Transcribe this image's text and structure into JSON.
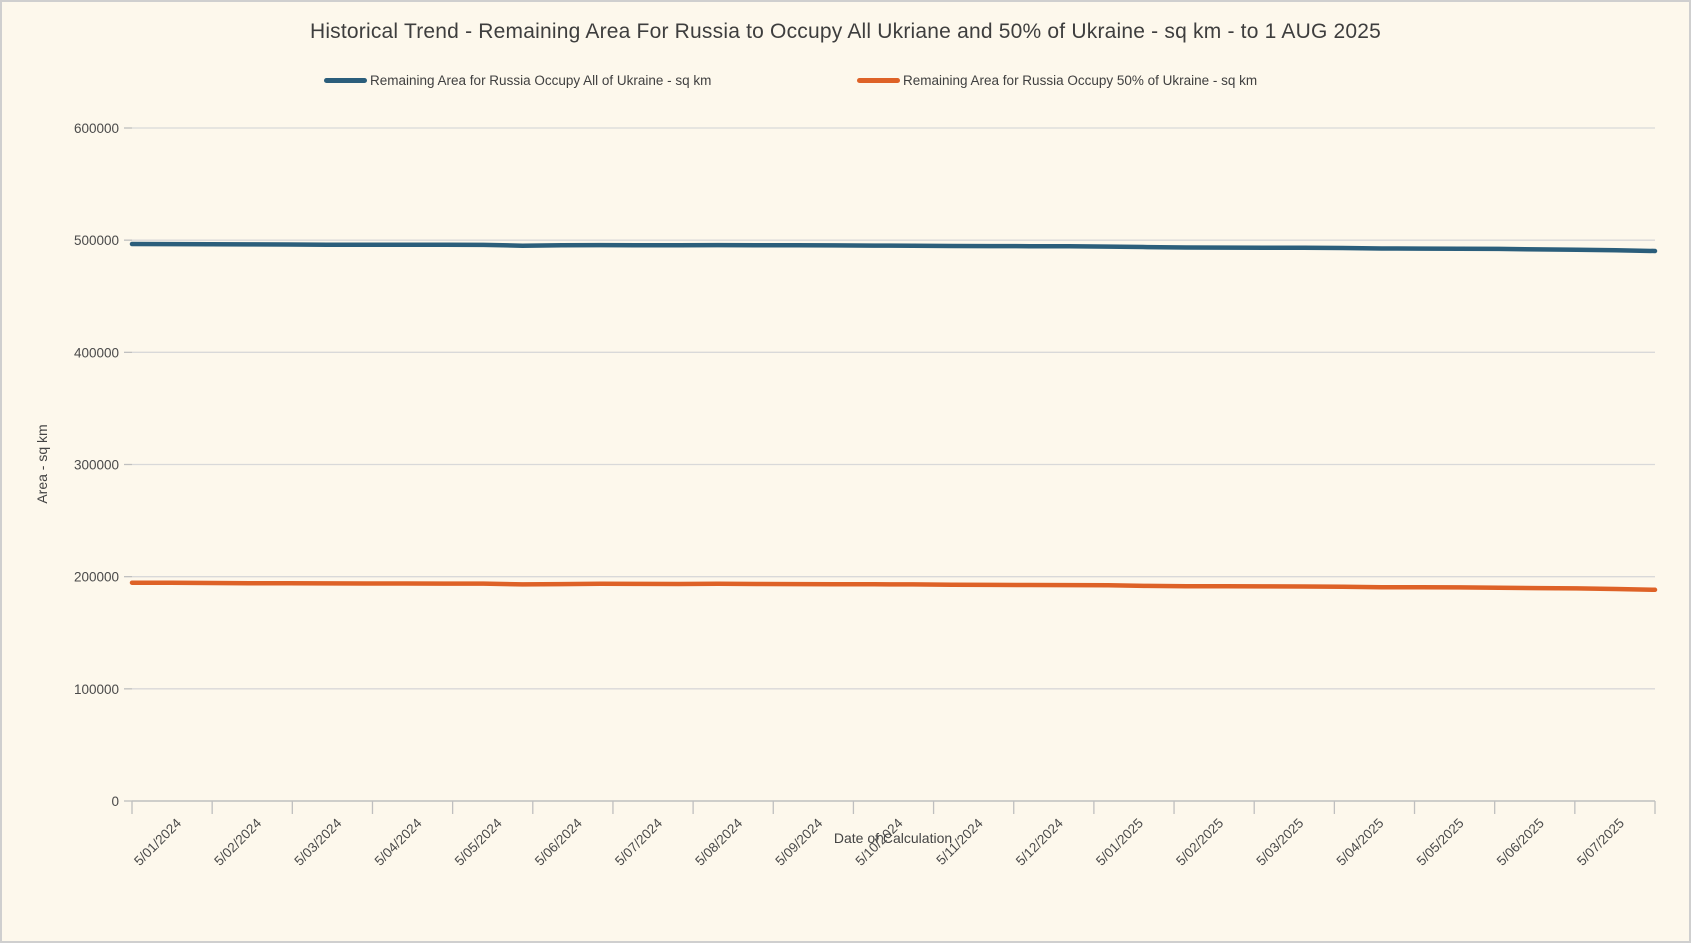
{
  "frame": {
    "background_color": "#FDF8EC",
    "border_color": "#CFCFCF"
  },
  "chart_data": {
    "type": "line",
    "title": "Historical Trend - Remaining Area For Russia to Occupy All Ukriane and 50% of Ukraine - sq km - to 1 AUG 2025",
    "xlabel": "Date of Calculation",
    "ylabel": "Area - sq km",
    "ylim": [
      0,
      600000
    ],
    "y_ticks": [
      0,
      100000,
      200000,
      300000,
      400000,
      500000,
      600000
    ],
    "x_tick_labels": [
      "5/01/2024",
      "5/02/2024",
      "5/03/2024",
      "5/04/2024",
      "5/05/2024",
      "5/06/2024",
      "5/07/2024",
      "5/08/2024",
      "5/09/2024",
      "5/10/2024",
      "5/11/2024",
      "5/12/2024",
      "5/01/2025",
      "5/02/2025",
      "5/03/2025",
      "5/04/2025",
      "5/05/2025",
      "5/06/2025",
      "5/07/2025"
    ],
    "grid": true,
    "legend_position": "top",
    "colors": {
      "gridline": "#D9D9D9",
      "axis": "#BFBFBF",
      "tick_text": "#4A4A4A"
    },
    "series": [
      {
        "name": "Remaining Area for Russia Occupy All of Ukraine - sq km",
        "color": "#2B5E7B",
        "values": [
          496600,
          496500,
          496350,
          496200,
          496100,
          496000,
          495950,
          495900,
          495850,
          495800,
          495100,
          495400,
          495600,
          495550,
          495500,
          495600,
          495500,
          495400,
          495300,
          495200,
          495100,
          494800,
          494700,
          494600,
          494500,
          494300,
          493800,
          493500,
          493400,
          493300,
          493200,
          493000,
          492600,
          492500,
          492400,
          492200,
          491800,
          491500,
          491000,
          490300
        ]
      },
      {
        "name": "Remaining Area for Russia Occupy 50% of Ukraine - sq km",
        "color": "#DE6227",
        "values": [
          194600,
          194500,
          194350,
          194200,
          194100,
          194000,
          193950,
          193900,
          193850,
          193800,
          193100,
          193400,
          193600,
          193550,
          193500,
          193600,
          193500,
          193400,
          193300,
          193200,
          193100,
          192800,
          192700,
          192600,
          192500,
          192300,
          191800,
          191500,
          191400,
          191300,
          191200,
          191000,
          190600,
          190500,
          190400,
          190200,
          189800,
          189500,
          189000,
          188300
        ]
      }
    ]
  }
}
